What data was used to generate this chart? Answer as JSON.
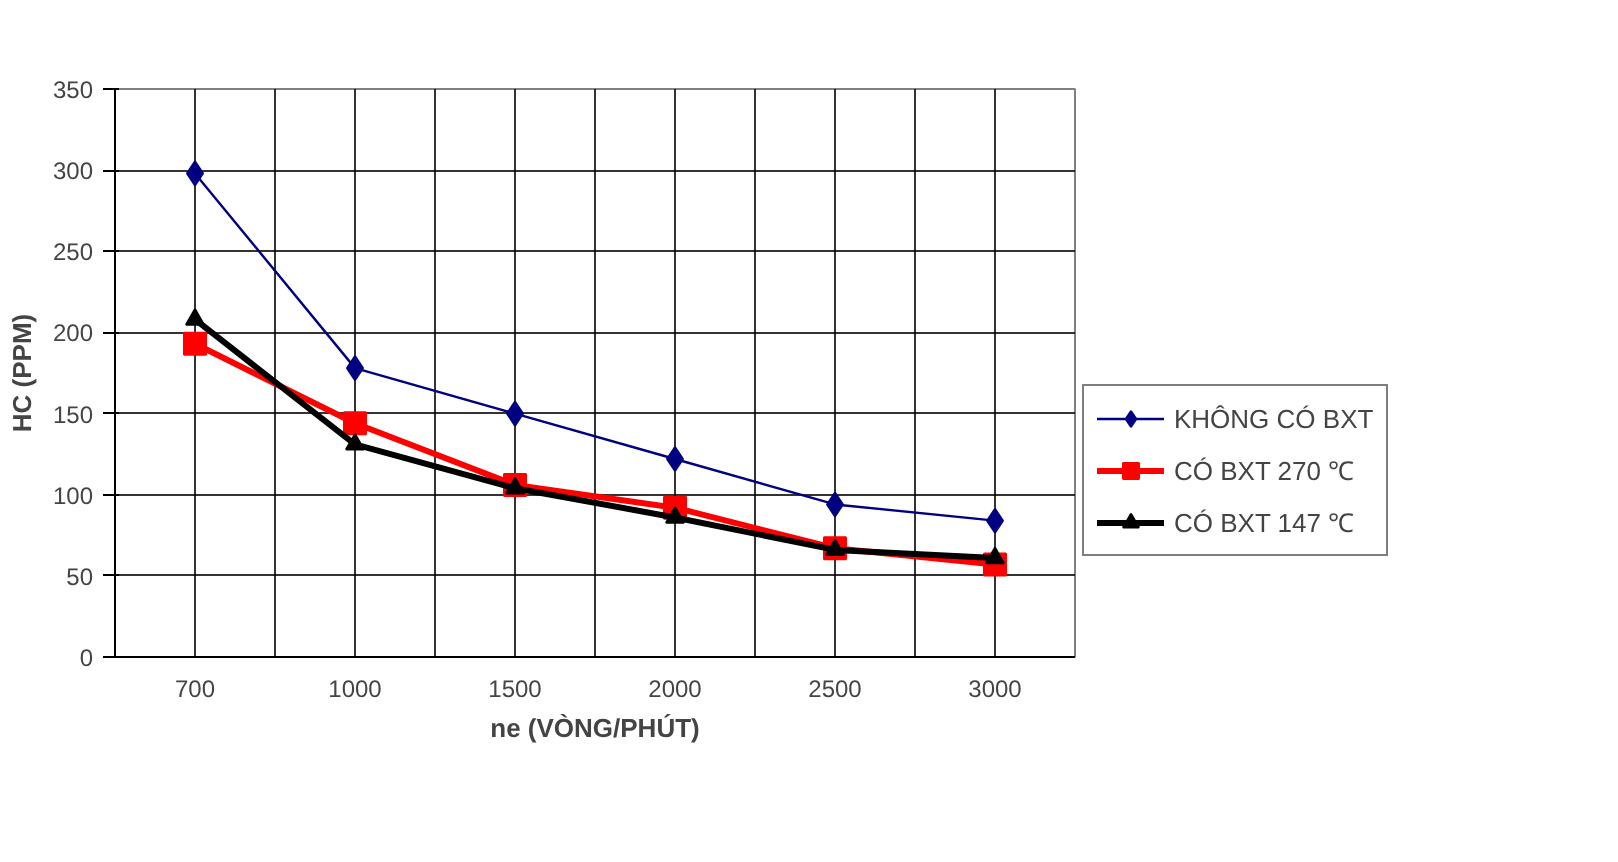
{
  "chart_data": {
    "type": "line",
    "xlabel": "ne (VÒNG/PHÚT)",
    "ylabel": "HC (PPM)",
    "categories": [
      "700",
      "1000",
      "1500",
      "2000",
      "2500",
      "3000"
    ],
    "series": [
      {
        "name": "KHÔNG CÓ BXT",
        "color": "#000080",
        "marker": "diamond",
        "values": [
          298,
          178,
          150,
          122,
          94,
          84
        ]
      },
      {
        "name": "CÓ BXT 270 ℃",
        "color": "#ff0000",
        "marker": "square",
        "values": [
          193,
          144,
          106,
          92,
          67,
          57
        ]
      },
      {
        "name": "CÓ BXT 147 ℃",
        "color": "#000000",
        "marker": "triangle",
        "values": [
          208,
          131,
          104,
          86,
          66,
          61
        ]
      }
    ],
    "ylim": [
      0,
      350
    ],
    "yticks": [
      0,
      50,
      100,
      150,
      200,
      250,
      300,
      350
    ],
    "grid": true,
    "legend": "right",
    "line_style": "solid"
  }
}
